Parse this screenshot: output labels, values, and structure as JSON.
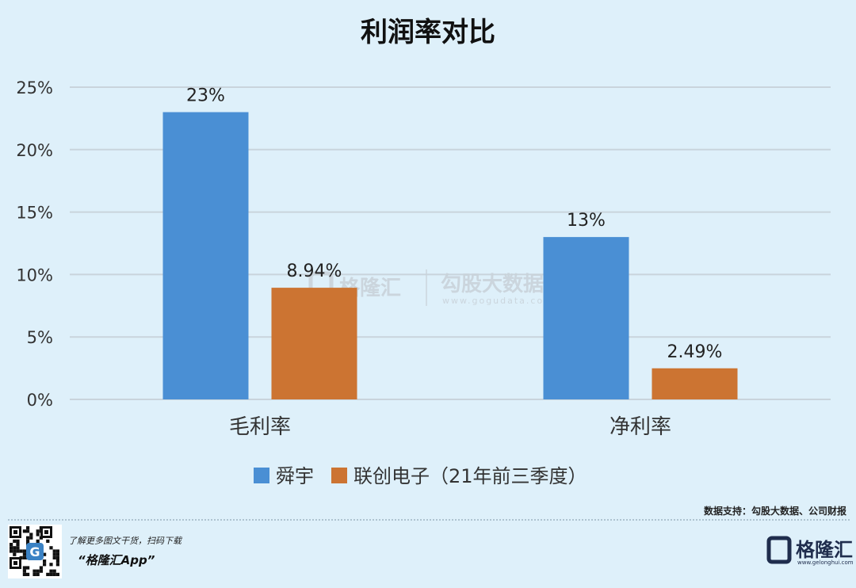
{
  "chart_data": {
    "type": "bar",
    "title": "利润率对比",
    "categories": [
      "毛利率",
      "净利率"
    ],
    "series": [
      {
        "name": "舜宇",
        "values": [
          23,
          13
        ],
        "labels": [
          "23%",
          "13%"
        ],
        "color": "#4a8fd4"
      },
      {
        "name": "联创电子（21年前三季度）",
        "values": [
          8.94,
          2.49
        ],
        "labels": [
          "8.94%",
          "2.49%"
        ],
        "color": "#cc7432"
      }
    ],
    "yticks": [
      "0%",
      "5%",
      "10%",
      "15%",
      "20%",
      "25%"
    ],
    "ylim": [
      0,
      25
    ],
    "grid": true,
    "legend_position": "bottom"
  },
  "watermark": {
    "brand": "格隆汇",
    "product": "勾股大数据",
    "url": "www.gogudata.com"
  },
  "footer": {
    "source": "数据支持：勾股大数据、公司财报",
    "qr_caption": "了解更多图文干货，扫码下载",
    "app_name": "“格隆汇App”",
    "brand_name": "格隆汇",
    "brand_url": "www.gelonghui.com"
  },
  "colors": {
    "background": "#def0fa",
    "grid": "#c9d4dc",
    "brand": "#1f2d4d"
  }
}
